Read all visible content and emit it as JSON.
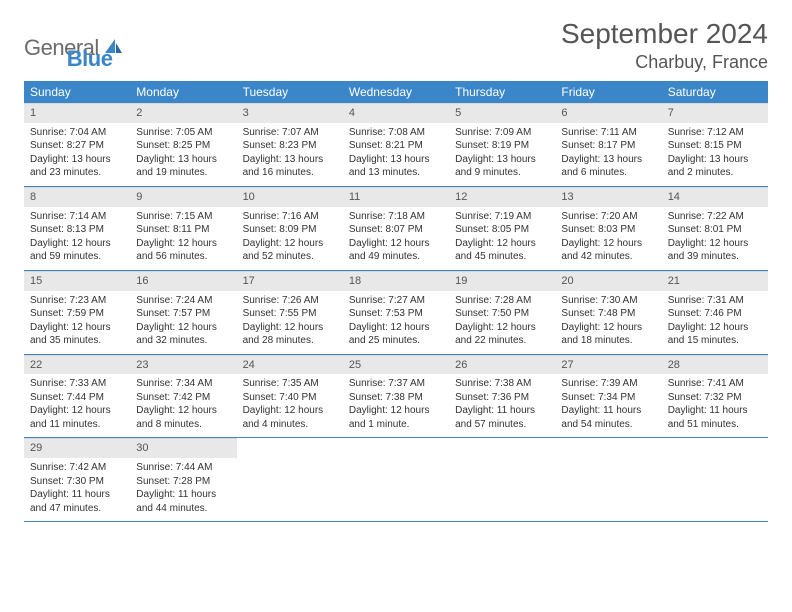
{
  "logo": {
    "word1": "General",
    "word2": "Blue"
  },
  "header": {
    "title": "September 2024",
    "location": "Charbuy, France"
  },
  "colors": {
    "header_bar": "#3a86c8",
    "daynum_bg": "#e8e8e8",
    "text": "#333333",
    "title_text": "#555555",
    "logo_gray": "#6b6b6b",
    "logo_blue": "#3a86c8"
  },
  "typography": {
    "title_fontsize": 28,
    "location_fontsize": 18,
    "dayhead_fontsize": 12,
    "cell_fontsize": 10
  },
  "layout": {
    "columns": 7,
    "rows": 5
  },
  "day_names": [
    "Sunday",
    "Monday",
    "Tuesday",
    "Wednesday",
    "Thursday",
    "Friday",
    "Saturday"
  ],
  "days": [
    {
      "n": "1",
      "sunrise": "Sunrise: 7:04 AM",
      "sunset": "Sunset: 8:27 PM",
      "daylight": "Daylight: 13 hours and 23 minutes."
    },
    {
      "n": "2",
      "sunrise": "Sunrise: 7:05 AM",
      "sunset": "Sunset: 8:25 PM",
      "daylight": "Daylight: 13 hours and 19 minutes."
    },
    {
      "n": "3",
      "sunrise": "Sunrise: 7:07 AM",
      "sunset": "Sunset: 8:23 PM",
      "daylight": "Daylight: 13 hours and 16 minutes."
    },
    {
      "n": "4",
      "sunrise": "Sunrise: 7:08 AM",
      "sunset": "Sunset: 8:21 PM",
      "daylight": "Daylight: 13 hours and 13 minutes."
    },
    {
      "n": "5",
      "sunrise": "Sunrise: 7:09 AM",
      "sunset": "Sunset: 8:19 PM",
      "daylight": "Daylight: 13 hours and 9 minutes."
    },
    {
      "n": "6",
      "sunrise": "Sunrise: 7:11 AM",
      "sunset": "Sunset: 8:17 PM",
      "daylight": "Daylight: 13 hours and 6 minutes."
    },
    {
      "n": "7",
      "sunrise": "Sunrise: 7:12 AM",
      "sunset": "Sunset: 8:15 PM",
      "daylight": "Daylight: 13 hours and 2 minutes."
    },
    {
      "n": "8",
      "sunrise": "Sunrise: 7:14 AM",
      "sunset": "Sunset: 8:13 PM",
      "daylight": "Daylight: 12 hours and 59 minutes."
    },
    {
      "n": "9",
      "sunrise": "Sunrise: 7:15 AM",
      "sunset": "Sunset: 8:11 PM",
      "daylight": "Daylight: 12 hours and 56 minutes."
    },
    {
      "n": "10",
      "sunrise": "Sunrise: 7:16 AM",
      "sunset": "Sunset: 8:09 PM",
      "daylight": "Daylight: 12 hours and 52 minutes."
    },
    {
      "n": "11",
      "sunrise": "Sunrise: 7:18 AM",
      "sunset": "Sunset: 8:07 PM",
      "daylight": "Daylight: 12 hours and 49 minutes."
    },
    {
      "n": "12",
      "sunrise": "Sunrise: 7:19 AM",
      "sunset": "Sunset: 8:05 PM",
      "daylight": "Daylight: 12 hours and 45 minutes."
    },
    {
      "n": "13",
      "sunrise": "Sunrise: 7:20 AM",
      "sunset": "Sunset: 8:03 PM",
      "daylight": "Daylight: 12 hours and 42 minutes."
    },
    {
      "n": "14",
      "sunrise": "Sunrise: 7:22 AM",
      "sunset": "Sunset: 8:01 PM",
      "daylight": "Daylight: 12 hours and 39 minutes."
    },
    {
      "n": "15",
      "sunrise": "Sunrise: 7:23 AM",
      "sunset": "Sunset: 7:59 PM",
      "daylight": "Daylight: 12 hours and 35 minutes."
    },
    {
      "n": "16",
      "sunrise": "Sunrise: 7:24 AM",
      "sunset": "Sunset: 7:57 PM",
      "daylight": "Daylight: 12 hours and 32 minutes."
    },
    {
      "n": "17",
      "sunrise": "Sunrise: 7:26 AM",
      "sunset": "Sunset: 7:55 PM",
      "daylight": "Daylight: 12 hours and 28 minutes."
    },
    {
      "n": "18",
      "sunrise": "Sunrise: 7:27 AM",
      "sunset": "Sunset: 7:53 PM",
      "daylight": "Daylight: 12 hours and 25 minutes."
    },
    {
      "n": "19",
      "sunrise": "Sunrise: 7:28 AM",
      "sunset": "Sunset: 7:50 PM",
      "daylight": "Daylight: 12 hours and 22 minutes."
    },
    {
      "n": "20",
      "sunrise": "Sunrise: 7:30 AM",
      "sunset": "Sunset: 7:48 PM",
      "daylight": "Daylight: 12 hours and 18 minutes."
    },
    {
      "n": "21",
      "sunrise": "Sunrise: 7:31 AM",
      "sunset": "Sunset: 7:46 PM",
      "daylight": "Daylight: 12 hours and 15 minutes."
    },
    {
      "n": "22",
      "sunrise": "Sunrise: 7:33 AM",
      "sunset": "Sunset: 7:44 PM",
      "daylight": "Daylight: 12 hours and 11 minutes."
    },
    {
      "n": "23",
      "sunrise": "Sunrise: 7:34 AM",
      "sunset": "Sunset: 7:42 PM",
      "daylight": "Daylight: 12 hours and 8 minutes."
    },
    {
      "n": "24",
      "sunrise": "Sunrise: 7:35 AM",
      "sunset": "Sunset: 7:40 PM",
      "daylight": "Daylight: 12 hours and 4 minutes."
    },
    {
      "n": "25",
      "sunrise": "Sunrise: 7:37 AM",
      "sunset": "Sunset: 7:38 PM",
      "daylight": "Daylight: 12 hours and 1 minute."
    },
    {
      "n": "26",
      "sunrise": "Sunrise: 7:38 AM",
      "sunset": "Sunset: 7:36 PM",
      "daylight": "Daylight: 11 hours and 57 minutes."
    },
    {
      "n": "27",
      "sunrise": "Sunrise: 7:39 AM",
      "sunset": "Sunset: 7:34 PM",
      "daylight": "Daylight: 11 hours and 54 minutes."
    },
    {
      "n": "28",
      "sunrise": "Sunrise: 7:41 AM",
      "sunset": "Sunset: 7:32 PM",
      "daylight": "Daylight: 11 hours and 51 minutes."
    },
    {
      "n": "29",
      "sunrise": "Sunrise: 7:42 AM",
      "sunset": "Sunset: 7:30 PM",
      "daylight": "Daylight: 11 hours and 47 minutes."
    },
    {
      "n": "30",
      "sunrise": "Sunrise: 7:44 AM",
      "sunset": "Sunset: 7:28 PM",
      "daylight": "Daylight: 11 hours and 44 minutes."
    }
  ]
}
